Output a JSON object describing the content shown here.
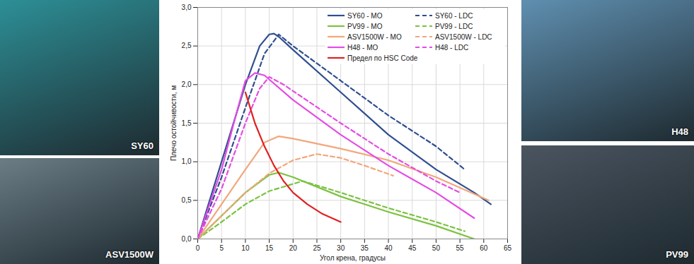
{
  "chart_data": {
    "type": "line",
    "xlabel": "Угол крена, градусы",
    "ylabel": "Плечо остойчивости, м",
    "xlim": [
      0,
      65
    ],
    "xticks": [
      0,
      5,
      10,
      15,
      20,
      25,
      30,
      35,
      40,
      45,
      50,
      55,
      60,
      65
    ],
    "ylim": [
      0,
      3.0
    ],
    "yticks": [
      {
        "value": 0,
        "label": "0,0"
      },
      {
        "value": 0.5,
        "label": "0,5"
      },
      {
        "value": 1.0,
        "label": "1,0"
      },
      {
        "value": 1.5,
        "label": "1,5"
      },
      {
        "value": 2.0,
        "label": "2,0"
      },
      {
        "value": 2.5,
        "label": "2,5"
      },
      {
        "value": 3.0,
        "label": "3,0"
      }
    ],
    "grid": true,
    "legend": "top-right",
    "series": [
      {
        "name": "SY60 - MO",
        "color": "#2f4f8f",
        "line_style": "solid",
        "x": [
          0,
          5,
          10,
          13,
          15,
          16,
          17,
          20,
          30,
          40,
          50,
          58,
          61.5
        ],
        "values": [
          0,
          1.0,
          2.0,
          2.5,
          2.65,
          2.66,
          2.62,
          2.45,
          1.9,
          1.35,
          0.9,
          0.6,
          0.45
        ]
      },
      {
        "name": "SY60 - LDC",
        "color": "#2f4f8f",
        "line_style": "dashed",
        "x": [
          0,
          5,
          10,
          14,
          17,
          20,
          30,
          40,
          50,
          56
        ],
        "values": [
          0,
          0.8,
          1.7,
          2.4,
          2.65,
          2.5,
          2.05,
          1.6,
          1.2,
          0.9
        ]
      },
      {
        "name": "PV99 - MO",
        "color": "#7cc242",
        "line_style": "solid",
        "x": [
          0,
          5,
          10,
          15,
          17,
          20,
          30,
          40,
          50,
          58
        ],
        "values": [
          0,
          0.3,
          0.6,
          0.83,
          0.86,
          0.8,
          0.55,
          0.35,
          0.17,
          0.0
        ]
      },
      {
        "name": "PV99 - LDC",
        "color": "#7cc242",
        "line_style": "dashed",
        "x": [
          0,
          5,
          10,
          15,
          22,
          30,
          40,
          50,
          56
        ],
        "values": [
          0,
          0.22,
          0.45,
          0.62,
          0.75,
          0.6,
          0.4,
          0.22,
          0.1
        ]
      },
      {
        "name": "ASV1500W - MO",
        "color": "#f2a77c",
        "line_style": "solid",
        "x": [
          0,
          5,
          10,
          14,
          17,
          20,
          30,
          40,
          50,
          61
        ],
        "values": [
          0,
          0.45,
          0.9,
          1.25,
          1.33,
          1.3,
          1.17,
          1.02,
          0.8,
          0.5
        ]
      },
      {
        "name": "ASV1500W - LDC",
        "color": "#f2a77c",
        "line_style": "dashed",
        "x": [
          0,
          5,
          10,
          15,
          20,
          25,
          30,
          35,
          41
        ],
        "values": [
          0,
          0.3,
          0.6,
          0.85,
          1.02,
          1.1,
          1.05,
          0.95,
          0.82
        ]
      },
      {
        "name": "H48 - MO",
        "color": "#e44ce4",
        "line_style": "solid",
        "x": [
          0,
          5,
          8,
          10,
          12,
          14,
          20,
          30,
          40,
          50,
          58
        ],
        "values": [
          0,
          0.9,
          1.6,
          2.05,
          2.15,
          2.12,
          1.8,
          1.35,
          0.95,
          0.6,
          0.27
        ]
      },
      {
        "name": "H48 - LDC",
        "color": "#e44ce4",
        "line_style": "dashed",
        "x": [
          0,
          5,
          10,
          13,
          15,
          18,
          30,
          40,
          50,
          55
        ],
        "values": [
          0,
          0.65,
          1.5,
          1.95,
          2.1,
          2.0,
          1.5,
          1.1,
          0.75,
          0.6
        ]
      },
      {
        "name": "Предел по HSC Code",
        "color": "#e02020",
        "line_style": "solid",
        "x": [
          10,
          11,
          12,
          14,
          16,
          18,
          20,
          23,
          26,
          30
        ],
        "values": [
          1.9,
          1.7,
          1.5,
          1.2,
          0.95,
          0.75,
          0.6,
          0.45,
          0.33,
          0.22
        ]
      }
    ]
  },
  "images": [
    {
      "label": "SY60"
    },
    {
      "label": "ASV1500W"
    },
    {
      "label": "H48"
    },
    {
      "label": "PV99"
    }
  ]
}
